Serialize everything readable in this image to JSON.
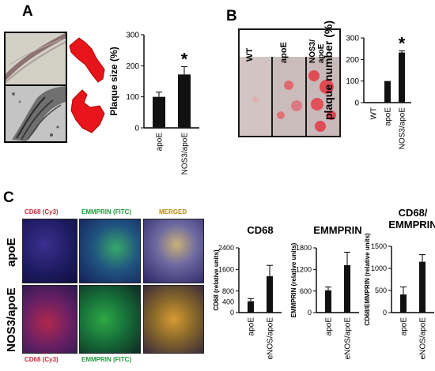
{
  "panels": {
    "A": {
      "letter": "A"
    },
    "B": {
      "letter": "B",
      "image_labels": [
        "WT",
        "apoE",
        "NOS3/ apoE"
      ]
    },
    "C": {
      "letter": "C",
      "row_labels": [
        "apoE",
        "NOS3/apoE"
      ],
      "column_labels": [
        "CD68 (Cy3)",
        "EMMPRIN (FITC)",
        "MERGED"
      ]
    }
  },
  "colors": {
    "bar": "#111111",
    "plaque_red": "#e8141b",
    "cd68_red": "#c8283c",
    "emmprin_green": "#2fa84a",
    "merged_yellow": "#e0a020"
  },
  "chart_data": [
    {
      "id": "chartA",
      "type": "bar",
      "title": "",
      "categories": [
        "apoE",
        "NOS3/apoE"
      ],
      "values": [
        100,
        172
      ],
      "errors": [
        15,
        25
      ],
      "ylabel": "Plaque size (%)",
      "ylim": [
        0,
        300
      ],
      "yticks": [
        "0",
        "100",
        "200",
        "300"
      ],
      "annotations": [
        "",
        "*"
      ]
    },
    {
      "id": "chartB",
      "type": "bar",
      "title": "",
      "categories": [
        "WT",
        "apoE",
        "NOS3/apoE"
      ],
      "values": [
        0,
        100,
        232
      ],
      "errors": [
        0,
        0,
        8
      ],
      "ylabel": "plaque number (%)",
      "ylim": [
        0,
        300
      ],
      "yticks": [
        "0",
        "100",
        "200",
        "300"
      ],
      "annotations": [
        "",
        "",
        "*"
      ]
    },
    {
      "id": "chartC1",
      "type": "bar",
      "title": "CD68",
      "categories": [
        "apoE",
        "eNOS/apoE"
      ],
      "values": [
        420,
        1350
      ],
      "errors": [
        100,
        400
      ],
      "ylabel": "CD68 (relative units)",
      "ylim": [
        0,
        2400
      ],
      "yticks": [
        "0",
        "800",
        "1600",
        "2400"
      ],
      "extra_ticks": [
        "400"
      ],
      "annotations": [
        "",
        ""
      ]
    },
    {
      "id": "chartC2",
      "type": "bar",
      "title": "EMMPRIN",
      "categories": [
        "apoE",
        "eNOS/apoE"
      ],
      "values": [
        620,
        1320
      ],
      "errors": [
        90,
        360
      ],
      "ylabel": "EMMPRIN (relative units)",
      "ylim": [
        0,
        1800
      ],
      "yticks": [
        "0",
        "600",
        "1200",
        "1800"
      ],
      "annotations": [
        "",
        ""
      ]
    },
    {
      "id": "chartC3",
      "type": "bar",
      "title": "CD68/ EMMPRIN",
      "categories": [
        "apoE",
        "eNOS/apoE"
      ],
      "values": [
        410,
        1150
      ],
      "errors": [
        170,
        160
      ],
      "ylabel": "CD68/EMMPRIN (relative units)",
      "ylim": [
        0,
        1500
      ],
      "yticks": [
        "0",
        "500",
        "1000",
        "1500"
      ],
      "annotations": [
        "",
        ""
      ]
    }
  ]
}
